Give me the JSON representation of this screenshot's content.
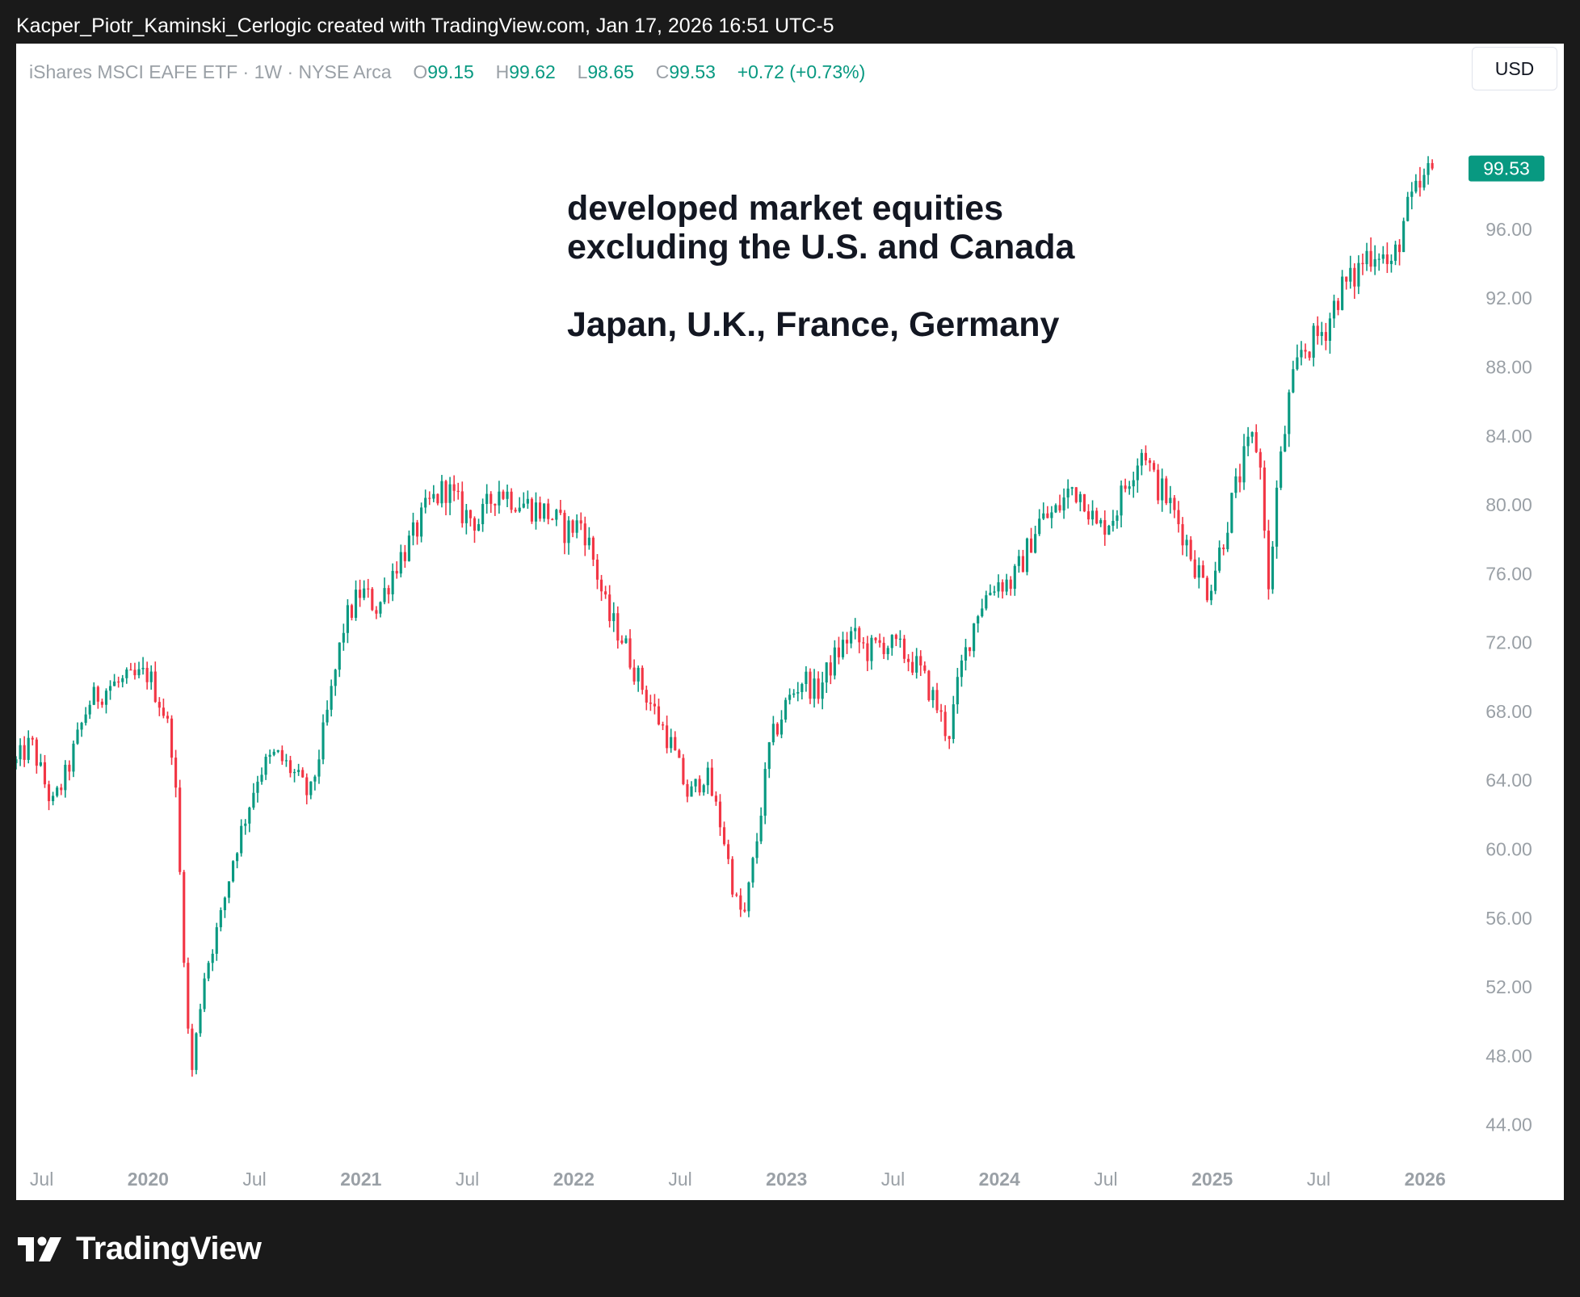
{
  "caption": "Kacper_Piotr_Kaminski_Cerlogic created with TradingView.com, Jan 17, 2026 16:51 UTC-5",
  "legend": {
    "symbol": "iShares MSCI EAFE ETF · 1W · NYSE Arca",
    "open_label": "O",
    "open": "99.15",
    "high_label": "H",
    "high": "99.62",
    "low_label": "L",
    "low": "98.65",
    "close_label": "C",
    "close": "99.53",
    "change": "+0.72 (+0.73%)"
  },
  "currency": "USD",
  "annotation": {
    "line1": "developed market equities",
    "line2": "excluding the U.S. and Canada",
    "line3": "Japan, U.K., France, Germany"
  },
  "footer": {
    "brand": "TradingView"
  },
  "colors": {
    "up": "#089981",
    "down": "#F23645",
    "axis_text": "#9AA0A6",
    "last_price_bg": "#089981"
  },
  "chart_data": {
    "type": "candlestick",
    "timeframe": "1W",
    "y_ticks": [
      "96.00",
      "92.00",
      "88.00",
      "84.00",
      "80.00",
      "76.00",
      "72.00",
      "68.00",
      "64.00",
      "60.00",
      "56.00",
      "52.00",
      "48.00",
      "44.00"
    ],
    "ylim": [
      41.5,
      103.5
    ],
    "last_price": "99.53",
    "x_ticks": [
      {
        "label": "Jul",
        "t": 2019.5,
        "bold": false
      },
      {
        "label": "2020",
        "t": 2020.0,
        "bold": true
      },
      {
        "label": "Jul",
        "t": 2020.5,
        "bold": false
      },
      {
        "label": "2021",
        "t": 2021.0,
        "bold": true
      },
      {
        "label": "Jul",
        "t": 2021.5,
        "bold": false
      },
      {
        "label": "2022",
        "t": 2022.0,
        "bold": true
      },
      {
        "label": "Jul",
        "t": 2022.5,
        "bold": false
      },
      {
        "label": "2023",
        "t": 2023.0,
        "bold": true
      },
      {
        "label": "Jul",
        "t": 2023.5,
        "bold": false
      },
      {
        "label": "2024",
        "t": 2024.0,
        "bold": true
      },
      {
        "label": "Jul",
        "t": 2024.5,
        "bold": false
      },
      {
        "label": "2025",
        "t": 2025.0,
        "bold": true
      },
      {
        "label": "Jul",
        "t": 2025.5,
        "bold": false
      },
      {
        "label": "2026",
        "t": 2026.0,
        "bold": true
      }
    ],
    "start_t": 2019.38,
    "end_t": 2026.05,
    "close_path": [
      [
        2019.38,
        65.0
      ],
      [
        2019.45,
        66.2
      ],
      [
        2019.55,
        62.5
      ],
      [
        2019.62,
        64.5
      ],
      [
        2019.72,
        68.5
      ],
      [
        2019.82,
        69.5
      ],
      [
        2019.92,
        69.8
      ],
      [
        2020.0,
        70.2
      ],
      [
        2020.08,
        67.8
      ],
      [
        2020.12,
        65.5
      ],
      [
        2020.16,
        56.0
      ],
      [
        2020.2,
        46.5
      ],
      [
        2020.26,
        52.5
      ],
      [
        2020.34,
        56.0
      ],
      [
        2020.4,
        59.5
      ],
      [
        2020.46,
        62.0
      ],
      [
        2020.52,
        64.5
      ],
      [
        2020.6,
        65.5
      ],
      [
        2020.68,
        64.5
      ],
      [
        2020.76,
        63.0
      ],
      [
        2020.82,
        66.5
      ],
      [
        2020.86,
        69.0
      ],
      [
        2020.92,
        73.0
      ],
      [
        2021.0,
        75.0
      ],
      [
        2021.08,
        74.0
      ],
      [
        2021.16,
        76.5
      ],
      [
        2021.24,
        78.0
      ],
      [
        2021.32,
        80.0
      ],
      [
        2021.4,
        81.0
      ],
      [
        2021.48,
        79.5
      ],
      [
        2021.56,
        79.0
      ],
      [
        2021.64,
        81.0
      ],
      [
        2021.7,
        80.5
      ],
      [
        2021.78,
        80.0
      ],
      [
        2021.88,
        79.5
      ],
      [
        2021.96,
        78.5
      ],
      [
        2022.04,
        79.0
      ],
      [
        2022.1,
        76.5
      ],
      [
        2022.16,
        73.5
      ],
      [
        2022.22,
        72.5
      ],
      [
        2022.3,
        70.0
      ],
      [
        2022.38,
        68.0
      ],
      [
        2022.46,
        66.0
      ],
      [
        2022.54,
        63.0
      ],
      [
        2022.62,
        64.5
      ],
      [
        2022.7,
        61.0
      ],
      [
        2022.76,
        57.0
      ],
      [
        2022.8,
        56.0
      ],
      [
        2022.86,
        60.5
      ],
      [
        2022.92,
        66.0
      ],
      [
        2023.0,
        68.5
      ],
      [
        2023.08,
        70.0
      ],
      [
        2023.14,
        69.0
      ],
      [
        2023.22,
        71.0
      ],
      [
        2023.3,
        72.5
      ],
      [
        2023.38,
        71.5
      ],
      [
        2023.46,
        72.0
      ],
      [
        2023.54,
        71.5
      ],
      [
        2023.62,
        70.5
      ],
      [
        2023.7,
        68.5
      ],
      [
        2023.76,
        66.5
      ],
      [
        2023.82,
        70.5
      ],
      [
        2023.9,
        74.0
      ],
      [
        2023.98,
        75.5
      ],
      [
        2024.06,
        75.5
      ],
      [
        2024.12,
        77.0
      ],
      [
        2024.18,
        79.0
      ],
      [
        2024.26,
        79.5
      ],
      [
        2024.34,
        81.0
      ],
      [
        2024.4,
        80.5
      ],
      [
        2024.46,
        78.5
      ],
      [
        2024.54,
        79.5
      ],
      [
        2024.62,
        82.0
      ],
      [
        2024.68,
        83.5
      ],
      [
        2024.72,
        81.5
      ],
      [
        2024.78,
        80.5
      ],
      [
        2024.86,
        78.5
      ],
      [
        2024.92,
        76.5
      ],
      [
        2024.98,
        75.0
      ],
      [
        2025.04,
        77.5
      ],
      [
        2025.1,
        80.5
      ],
      [
        2025.16,
        83.0
      ],
      [
        2025.2,
        84.0
      ],
      [
        2025.24,
        81.0
      ],
      [
        2025.26,
        74.0
      ],
      [
        2025.3,
        80.5
      ],
      [
        2025.36,
        86.0
      ],
      [
        2025.42,
        89.0
      ],
      [
        2025.48,
        89.5
      ],
      [
        2025.54,
        90.5
      ],
      [
        2025.6,
        92.5
      ],
      [
        2025.66,
        93.0
      ],
      [
        2025.72,
        94.5
      ],
      [
        2025.78,
        95.0
      ],
      [
        2025.84,
        93.5
      ],
      [
        2025.9,
        96.5
      ],
      [
        2025.96,
        98.0
      ],
      [
        2026.0,
        98.8
      ],
      [
        2026.04,
        99.53
      ]
    ]
  }
}
